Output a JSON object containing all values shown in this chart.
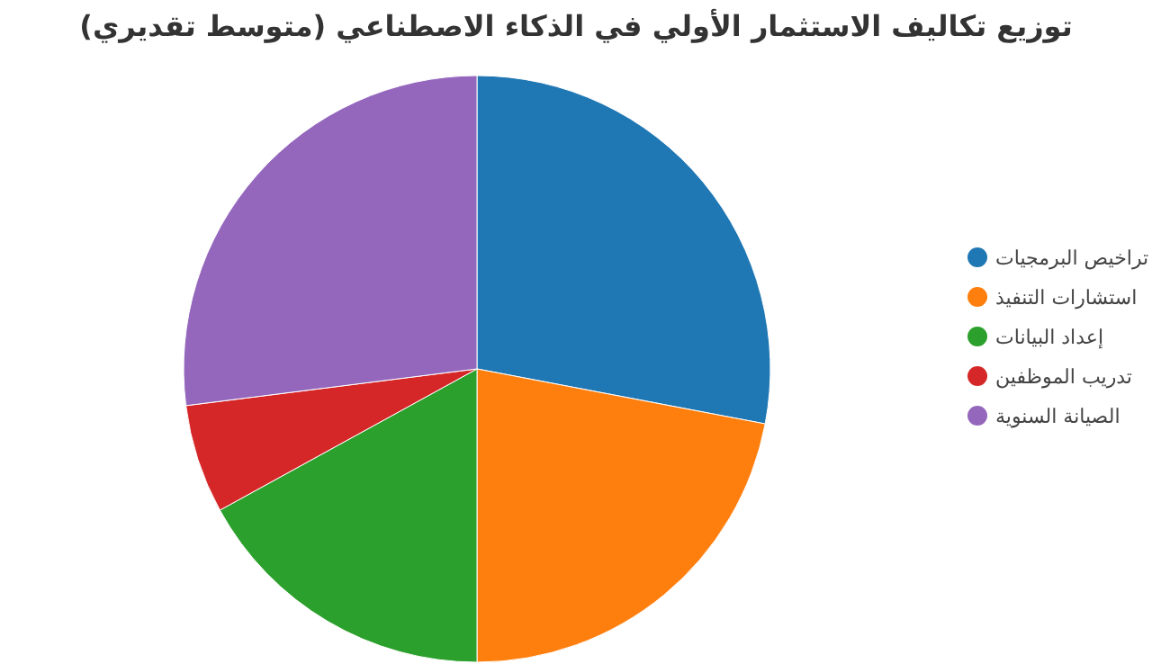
{
  "chart_data": {
    "type": "pie",
    "title": "توزيع تكاليف الاستثمار الأولي في الذكاء الاصطناعي (متوسط تقديري)",
    "categories": [
      "تراخيص البرمجيات",
      "استشارات التنفيذ",
      "إعداد البيانات",
      "تدريب الموظفين",
      "الصيانة السنوية"
    ],
    "values": [
      28,
      22,
      17,
      6,
      27
    ],
    "colors": [
      "#1f77b4",
      "#ff7f0e",
      "#2ca02c",
      "#d62728",
      "#9467bd"
    ],
    "legend": "right"
  }
}
